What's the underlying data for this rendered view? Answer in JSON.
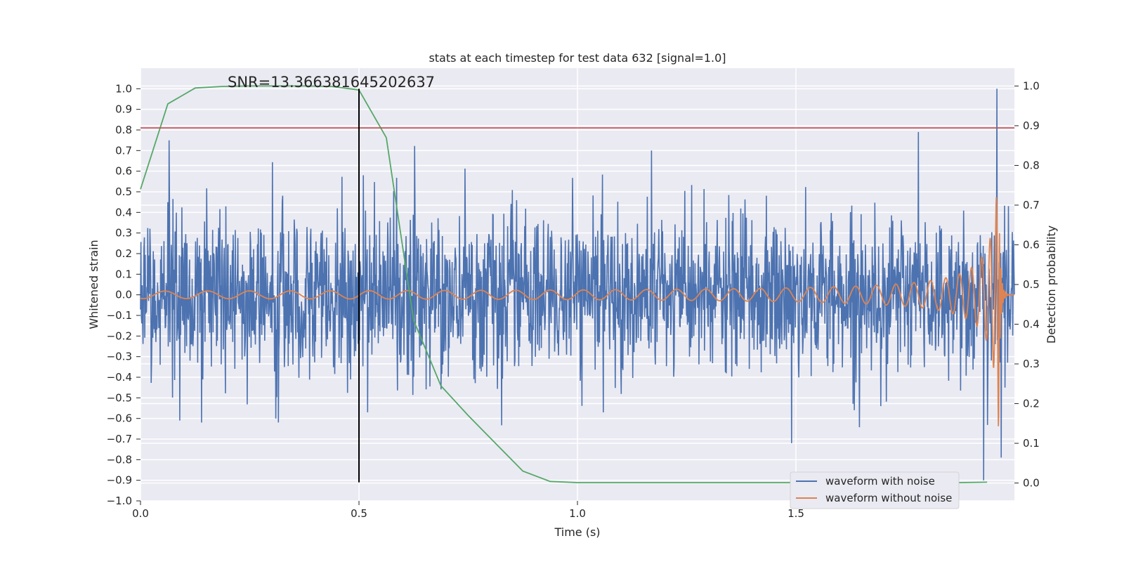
{
  "chart_data": {
    "type": "line",
    "title": "stats at each timestep for test data 632 [signal=1.0]",
    "annotation": "SNR=13.366381645202637",
    "xlabel": "Time (s)",
    "ylabel": "Whitened strain",
    "ylabel_right": "Detection probability",
    "xlim": [
      0.0,
      2.0
    ],
    "ylim": [
      -1.0,
      1.1
    ],
    "ylim_right": [
      -0.045,
      1.045
    ],
    "x_ticks": [
      0.0,
      0.5,
      1.0,
      1.5
    ],
    "x_tick_labels": [
      "0.0",
      "0.5",
      "1.0",
      "1.5"
    ],
    "y_ticks": [
      -1.0,
      -0.9,
      -0.8,
      -0.7,
      -0.6,
      -0.5,
      -0.4,
      -0.3,
      -0.2,
      -0.1,
      0.0,
      0.1,
      0.2,
      0.3,
      0.4,
      0.5,
      0.6,
      0.7,
      0.8,
      0.9,
      1.0
    ],
    "y_tick_labels": [
      "−1.0",
      "−0.9",
      "−0.8",
      "−0.7",
      "−0.6",
      "−0.5",
      "−0.4",
      "−0.3",
      "−0.2",
      "−0.1",
      "0.0",
      "0.1",
      "0.2",
      "0.3",
      "0.4",
      "0.5",
      "0.6",
      "0.7",
      "0.8",
      "0.9",
      "1.0"
    ],
    "y_right_ticks": [
      0.0,
      0.1,
      0.2,
      0.3,
      0.4,
      0.5,
      0.6,
      0.7,
      0.8,
      0.9,
      1.0
    ],
    "y_right_tick_labels": [
      "0.0",
      "0.1",
      "0.2",
      "0.3",
      "0.4",
      "0.5",
      "0.6",
      "0.7",
      "0.8",
      "0.9",
      "1.0"
    ],
    "grid": true,
    "legend_position": "lower-right",
    "series": [
      {
        "name": "waveform with noise",
        "color": "#4c72b0",
        "axis": "left",
        "noise_std": 0.19,
        "n_points": 2048,
        "peaks": [
          {
            "x": 0.065,
            "y": 0.75
          },
          {
            "x": 0.09,
            "y": -0.61
          },
          {
            "x": 0.14,
            "y": 0.63
          },
          {
            "x": 0.14,
            "y": -0.62
          },
          {
            "x": 0.31,
            "y": -0.6
          },
          {
            "x": 0.51,
            "y": 0.58
          },
          {
            "x": 0.52,
            "y": -0.57
          },
          {
            "x": 1.17,
            "y": 0.7
          },
          {
            "x": 1.49,
            "y": -0.72
          },
          {
            "x": 1.78,
            "y": 0.79
          },
          {
            "x": 1.93,
            "y": -0.9
          },
          {
            "x": 1.96,
            "y": 1.0
          },
          {
            "x": 1.97,
            "y": -0.79
          }
        ]
      },
      {
        "name": "waveform without noise",
        "color": "#dd8452",
        "axis": "left",
        "chirp_end_time": 1.965,
        "peak_amplitude": 0.75,
        "samples": [
          {
            "x": 0.0,
            "y": -0.01
          },
          {
            "x": 0.5,
            "y": 0.01
          },
          {
            "x": 1.0,
            "y": 0.02
          },
          {
            "x": 1.5,
            "y": 0.04
          },
          {
            "x": 1.75,
            "y": 0.1
          },
          {
            "x": 1.9,
            "y": 0.35
          },
          {
            "x": 1.95,
            "y": 0.75
          },
          {
            "x": 1.965,
            "y": -0.7
          }
        ]
      },
      {
        "name": "detection probability",
        "color": "#55a868",
        "axis": "right",
        "x": [
          0.0,
          0.0625,
          0.125,
          0.1875,
          0.25,
          0.3125,
          0.375,
          0.4375,
          0.5,
          0.5625,
          0.625,
          0.6875,
          0.75,
          0.8125,
          0.875,
          0.9375,
          1.0,
          1.0625,
          1.125,
          1.1875,
          1.25,
          1.3125,
          1.375,
          1.4375,
          1.5,
          1.5625,
          1.625,
          1.6875,
          1.75,
          1.8125,
          1.875,
          1.9375
        ],
        "y": [
          0.74,
          0.955,
          0.995,
          0.999,
          1.0,
          1.0,
          1.0,
          0.999,
          0.99,
          0.87,
          0.41,
          0.245,
          0.17,
          0.1,
          0.03,
          0.004,
          0.001,
          0.001,
          0.001,
          0.001,
          0.001,
          0.001,
          0.001,
          0.001,
          0.001,
          0.001,
          0.001,
          0.001,
          0.001,
          0.001,
          0.001,
          0.002
        ]
      }
    ],
    "reference_lines": [
      {
        "orientation": "horizontal",
        "axis": "left",
        "y": 0.81,
        "color": "#c44e52"
      },
      {
        "orientation": "vertical",
        "x": 0.5,
        "y_range": [
          -0.91,
          1.0
        ],
        "color": "#000000"
      }
    ],
    "legend": [
      {
        "label": "waveform with noise",
        "color": "#4c72b0"
      },
      {
        "label": "waveform without noise",
        "color": "#dd8452"
      }
    ],
    "colors": {
      "plot_background": "#eaeaf2",
      "grid": "#ffffff",
      "text": "#262626"
    }
  }
}
